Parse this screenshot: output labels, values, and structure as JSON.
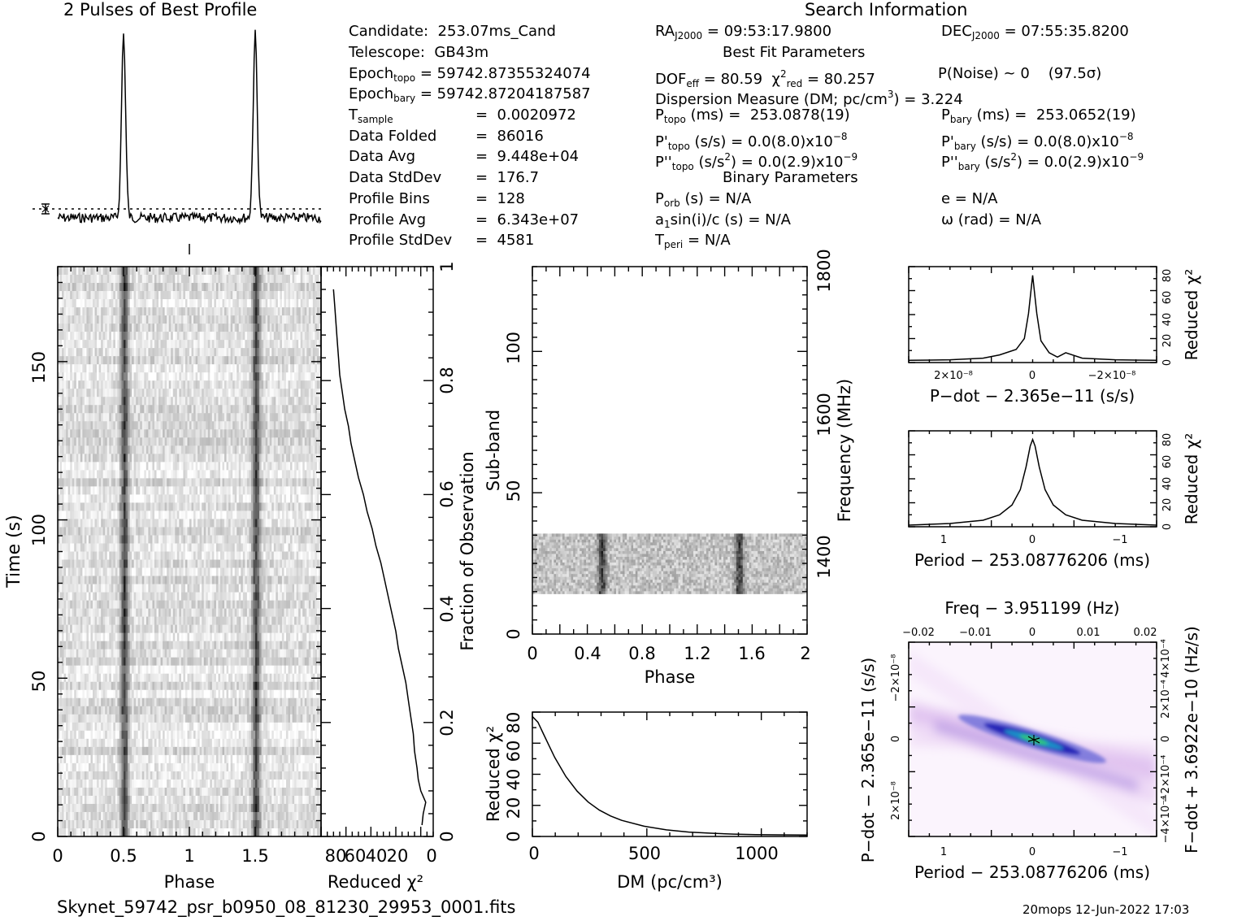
{
  "profile": {
    "title": "2 Pulses of Best Profile"
  },
  "search": {
    "title": "Search Information"
  },
  "info": {
    "candidate_label": "Candidate:",
    "candidate": "253.07ms_Cand",
    "telescope_label": "Telescope:",
    "telescope": "GB43m",
    "epoch_topo": "59742.87355324074",
    "epoch_bary": "59742.87204187587",
    "t_sample": "0.0020972",
    "data_folded_label": "Data Folded",
    "data_folded": "86016",
    "data_avg_label": "Data Avg",
    "data_avg": "9.448e+04",
    "data_stddev_label": "Data StdDev",
    "data_stddev": "176.7",
    "profile_bins_label": "Profile Bins",
    "profile_bins": "128",
    "profile_avg_label": "Profile Avg",
    "profile_avg": "6.343e+07",
    "profile_stddev_label": "Profile StdDev",
    "profile_stddev": "4581",
    "ra": "09:53:17.9800",
    "dec": "07:55:35.8200",
    "best_fit_title": "Best Fit Parameters",
    "dof_eff": "80.59",
    "chi2_red": "80.257",
    "p_noise": "P(Noise) ~ 0    (97.5σ)",
    "dm_value": "3.224",
    "p_topo": "253.0878(19)",
    "p_bary": "253.0652(19)",
    "pd_topo": "0.0(8.0)",
    "pd_bary": "0.0(8.0)",
    "pdd_topo": "0.0(2.9)",
    "pdd_bary": "0.0(2.9)",
    "binary_title": "Binary Parameters",
    "p_orb": "N/A",
    "e": "N/A",
    "a1": "N/A",
    "omega": "N/A",
    "t_peri": "N/A"
  },
  "footer": {
    "filename": "Skynet_59742_psr_b0950_08_81230_29953_0001.fits",
    "stamp": "20mops 12-Jun-2022 17:03"
  },
  "colors": {
    "trace": "#000000",
    "ppdot_low": "#ffffff",
    "ppdot_mid": "#c8a0e0",
    "ppdot_high": "#2a2ab8",
    "ppdot_peak": "#33cc66"
  },
  "chart_data": [
    {
      "type": "line",
      "id": "pulse-profile",
      "title": "2 Pulses of Best Profile",
      "x_range": [
        0,
        2
      ],
      "peak_phase": [
        0.5,
        1.5
      ],
      "baseline_marker": "dotted",
      "note": "Two sharp pulses at phase 0.5 and 1.5"
    },
    {
      "type": "heatmap",
      "id": "time-phase",
      "xlabel": "Phase",
      "ylabel": "Time (s)",
      "xlim": [
        0,
        2
      ],
      "ylim": [
        0,
        180
      ],
      "x_ticks": [
        "0",
        "0.5",
        "1",
        "1.5"
      ],
      "y_ticks": [
        "0",
        "50",
        "100",
        "150"
      ],
      "pulse_phase": [
        0.5,
        1.5
      ]
    },
    {
      "type": "line",
      "id": "chi2-vs-time",
      "xlabel": "Reduced χ²",
      "ylabel": "Fraction of Observation",
      "xlim": [
        90,
        0
      ],
      "ylim": [
        0,
        1
      ],
      "x_ticks": [
        "80",
        "60",
        "40",
        "20",
        "0"
      ],
      "y_ticks": [
        "0",
        "0.2",
        "0.4",
        "0.6",
        "0.8",
        "1"
      ],
      "x": [
        9,
        8,
        6,
        10,
        12,
        13,
        15,
        16,
        18,
        20,
        22,
        25,
        28,
        30,
        33,
        36,
        39,
        42,
        46,
        49,
        53,
        56,
        60,
        63,
        66,
        68,
        71,
        73,
        75,
        76,
        77,
        78,
        79,
        80
      ],
      "y": [
        0.02,
        0.04,
        0.06,
        0.08,
        0.1,
        0.12,
        0.15,
        0.18,
        0.21,
        0.24,
        0.27,
        0.3,
        0.33,
        0.36,
        0.39,
        0.42,
        0.45,
        0.48,
        0.51,
        0.54,
        0.57,
        0.6,
        0.63,
        0.66,
        0.69,
        0.72,
        0.75,
        0.78,
        0.81,
        0.84,
        0.87,
        0.9,
        0.93,
        0.96
      ]
    },
    {
      "type": "heatmap",
      "id": "subband-phase",
      "xlabel": "Phase",
      "ylabel": "Sub-band",
      "y2label": "Frequency (MHz)",
      "xlim": [
        0,
        2
      ],
      "ylim": [
        0,
        128
      ],
      "x_ticks": [
        "0",
        "0.4",
        "0.8",
        "1.2",
        "1.6",
        "2"
      ],
      "y_ticks": [
        "0",
        "50",
        "100"
      ],
      "y2_ticks": [
        "1400",
        "1600",
        "1800"
      ],
      "data_subbands": [
        14,
        35
      ],
      "pulse_phase": [
        0.5,
        1.5
      ]
    },
    {
      "type": "line",
      "id": "dm-curve",
      "xlabel": "DM (pc/cm³)",
      "ylabel": "Reduced χ²",
      "xlim": [
        0,
        1230
      ],
      "ylim": [
        0,
        85
      ],
      "x_ticks": [
        "0",
        "500",
        "1000"
      ],
      "y_ticks": [
        "0",
        "20",
        "40",
        "60",
        "80"
      ],
      "x": [
        0,
        25,
        50,
        75,
        100,
        150,
        200,
        250,
        300,
        350,
        400,
        500,
        600,
        700,
        800,
        900,
        1000,
        1100,
        1230
      ],
      "y": [
        82,
        78,
        70,
        62,
        54,
        41,
        31,
        23.5,
        18,
        14,
        11,
        7,
        4.5,
        3,
        2.2,
        1.6,
        1.3,
        1.1,
        1.0
      ]
    },
    {
      "type": "line",
      "id": "pdot-curve",
      "xlabel": "P-dot − 2.365e-11 (s/s)",
      "ylabel": "Reduced χ²",
      "xlim": [
        3e-08,
        -3e-08
      ],
      "ylim": [
        0,
        88
      ],
      "x_ticks": [
        "2×10⁻⁸",
        "0",
        "−2×10⁻⁸"
      ],
      "y_ticks": [
        "0",
        "20",
        "40",
        "60",
        "80"
      ],
      "x": [
        3e-08,
        2e-08,
        1.2e-08,
        8e-09,
        4e-09,
        2e-09,
        1e-09,
        0,
        -1e-09,
        -2e-09,
        -4e-09,
        -6e-09,
        -8e-09,
        -1.2e-08,
        -2e-08,
        -3e-08
      ],
      "y": [
        2,
        2.5,
        4,
        7,
        12,
        22,
        45,
        80,
        45,
        20,
        9,
        5,
        9,
        4,
        2.5,
        2
      ]
    },
    {
      "type": "line",
      "id": "period-curve",
      "xlabel": "Period − 253.08776206 (ms)",
      "ylabel": "Reduced χ²",
      "xlim": [
        1.5,
        -1.5
      ],
      "ylim": [
        0,
        88
      ],
      "x_ticks": [
        "1",
        "0",
        "−1"
      ],
      "y_ticks": [
        "0",
        "20",
        "40",
        "60",
        "80"
      ],
      "x": [
        1.5,
        1.0,
        0.6,
        0.4,
        0.25,
        0.15,
        0.08,
        0.03,
        0,
        -0.03,
        -0.08,
        -0.15,
        -0.25,
        -0.4,
        -0.6,
        -1.0,
        -1.5
      ],
      "y": [
        1.5,
        3,
        6,
        11,
        20,
        34,
        55,
        74,
        80,
        74,
        55,
        34,
        20,
        11,
        6,
        3,
        1.5
      ]
    },
    {
      "type": "heatmap",
      "id": "p-pdot",
      "xlabel": "Period − 253.08776206 (ms)",
      "ylabel": "P-dot − 2.365e-11 (s/s)",
      "x2label": "Freq − 3.951199 (Hz)",
      "y2label": "F-dot + 3.6922e-10 (Hz/s)",
      "xlim": [
        1.5,
        -1.5
      ],
      "ylim": [
        3e-08,
        -3e-08
      ],
      "x_ticks": [
        "1",
        "0",
        "−1"
      ],
      "x2_ticks": [
        "−0.02",
        "−0.01",
        "0",
        "0.01",
        "0.02"
      ],
      "y_ticks": [
        "−2×10⁻⁸",
        "0",
        "2×10⁻⁸"
      ],
      "y2_ticks": [
        "−4×10⁻⁴",
        "−2×10⁻⁴",
        "0",
        "2×10⁻⁴",
        "4×10⁻⁴"
      ],
      "peak": [
        0,
        0
      ]
    }
  ]
}
